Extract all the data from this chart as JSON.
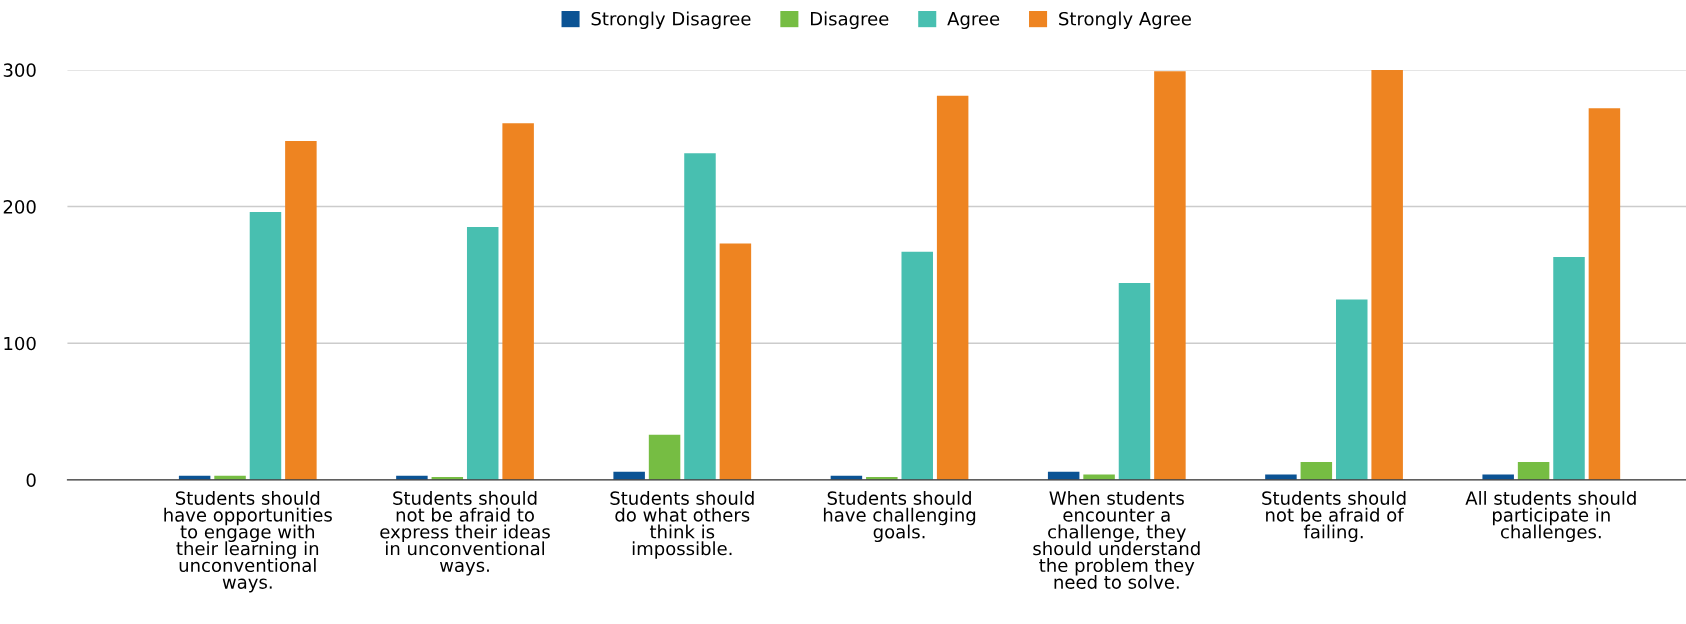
{
  "chart_data": {
    "type": "bar",
    "categories": [
      "Students should\nhave opportunities\nto engage with\ntheir learning in\nunconventional\nways.",
      "Students should\nnot be afraid to\nexpress their ideas\nin unconventional\nways.",
      "Students should\ndo what others\nthink is\nimpossible.",
      "Students should\nhave challenging\ngoals.",
      "When students\nencounter a\nchallenge, they\nshould understand\nthe problem they\nneed to solve.",
      "Students should\nnot be afraid of\nfailing.",
      "All students should\nparticipate in\nchallenges."
    ],
    "series": [
      {
        "name": "Strongly Disagree",
        "color": "#0b5394",
        "values": [
          3,
          3,
          6,
          3,
          6,
          4,
          4
        ]
      },
      {
        "name": "Disagree",
        "color": "#76bd43",
        "values": [
          3,
          2,
          33,
          2,
          4,
          13,
          13
        ]
      },
      {
        "name": "Agree",
        "color": "#48bfb0",
        "values": [
          196,
          185,
          239,
          167,
          144,
          132,
          163
        ]
      },
      {
        "name": "Strongly Agree",
        "color": "#ee8421",
        "values": [
          248,
          261,
          173,
          281,
          299,
          300,
          272
        ]
      }
    ],
    "ylim": [
      0,
      300
    ],
    "yticks": [
      0,
      100,
      200,
      300
    ],
    "grid": "y",
    "legend": "top"
  }
}
